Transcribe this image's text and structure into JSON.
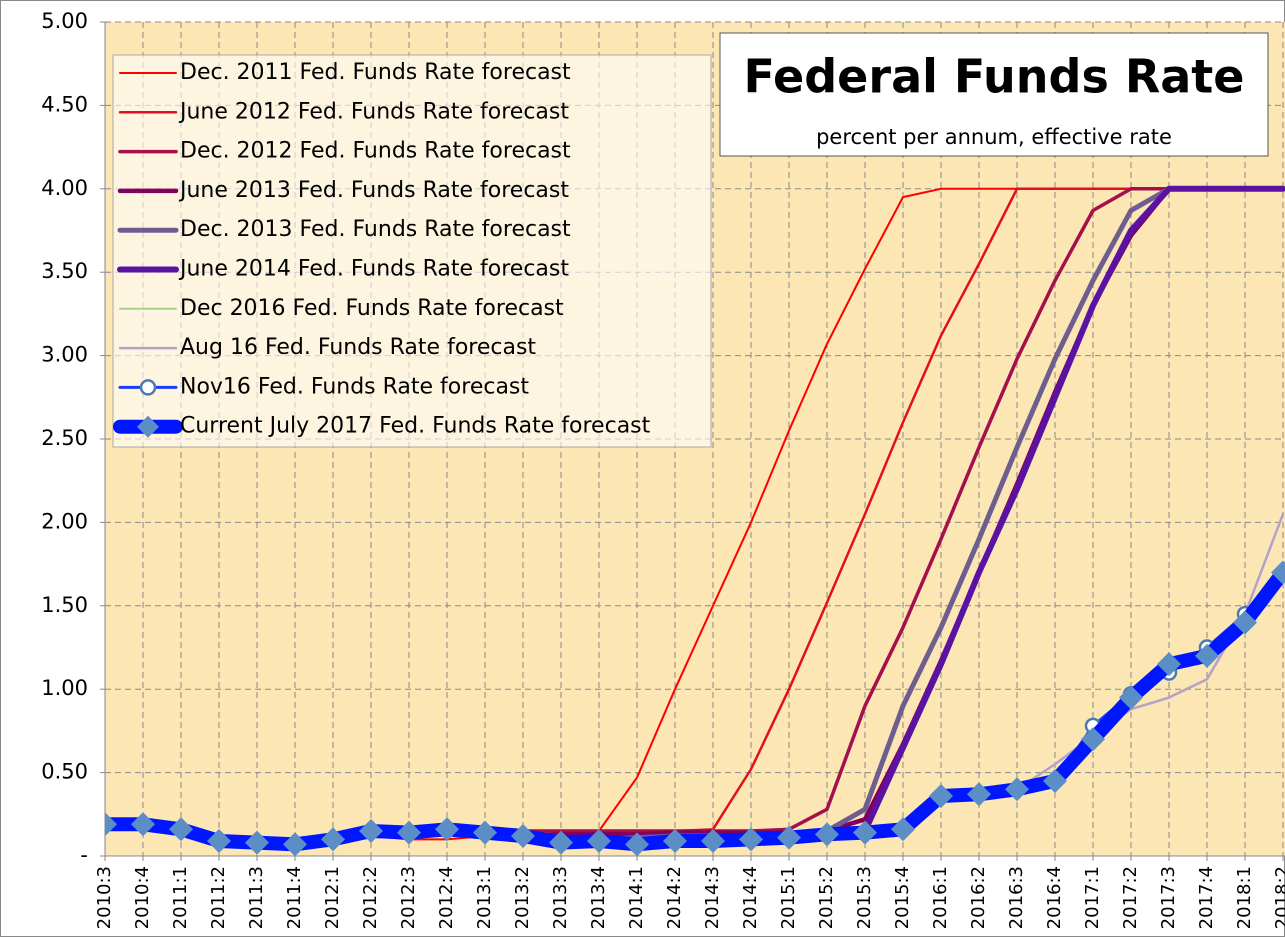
{
  "chart_data": {
    "type": "line",
    "title": "Federal Funds Rate",
    "subtitle": "percent per annum, effective rate",
    "background": "#fce6b4",
    "grid": true,
    "legend": "upper left",
    "categories": [
      "2010:3",
      "2010:4",
      "2011:1",
      "2011:2",
      "2011:3",
      "2011:4",
      "2012:1",
      "2012:2",
      "2012:3",
      "2012:4",
      "2013:1",
      "2013:2",
      "2013:3",
      "2013:4",
      "2014:1",
      "2014:2",
      "2014:3",
      "2014:4",
      "2015:1",
      "2015:2",
      "2015:3",
      "2015:4",
      "2016:1",
      "2016:2",
      "2016:3",
      "2016:4",
      "2017:1",
      "2017:2",
      "2017:3",
      "2017:4",
      "2018:1",
      "2018:2"
    ],
    "ylim": [
      0,
      5
    ],
    "yticks": [
      {
        "value": 0,
        "label": "-"
      },
      {
        "value": 0.5,
        "label": "0.50"
      },
      {
        "value": 1,
        "label": "1.00"
      },
      {
        "value": 1.5,
        "label": "1.50"
      },
      {
        "value": 2,
        "label": "2.00"
      },
      {
        "value": 2.5,
        "label": "2.50"
      },
      {
        "value": 3,
        "label": "3.00"
      },
      {
        "value": 3.5,
        "label": "3.50"
      },
      {
        "value": 4,
        "label": "4.00"
      },
      {
        "value": 4.5,
        "label": "4.50"
      },
      {
        "value": 5,
        "label": "5.00"
      }
    ],
    "series": [
      {
        "name": "Dec. 2011 Fed. Funds Rate forecast",
        "color": "#ff0000",
        "line_width": 2,
        "values": [
          null,
          null,
          null,
          null,
          null,
          0.08,
          0.1,
          0.12,
          0.1,
          0.1,
          0.12,
          0.14,
          0.15,
          0.15,
          0.47,
          1.0,
          1.5,
          2.0,
          2.55,
          3.07,
          3.52,
          3.95,
          4.0,
          4.0,
          4.0,
          4.0,
          4.0,
          4.0,
          4.0,
          4.0,
          4.0,
          4.0
        ]
      },
      {
        "name": "June 2012 Fed. Funds Rate forecast",
        "color": "#e2101e",
        "line_width": 2.5,
        "values": [
          null,
          null,
          null,
          null,
          null,
          null,
          null,
          0.15,
          0.15,
          0.15,
          0.15,
          0.15,
          0.15,
          0.15,
          0.15,
          0.15,
          0.16,
          0.52,
          1.0,
          1.52,
          2.05,
          2.6,
          3.12,
          3.55,
          4.0,
          4.0,
          4.0,
          4.0,
          4.0,
          4.0,
          4.0,
          4.0
        ]
      },
      {
        "name": "Dec. 2012 Fed. Funds Rate forecast",
        "color": "#a3104c",
        "line_width": 3.5,
        "values": [
          null,
          null,
          null,
          null,
          null,
          null,
          null,
          null,
          null,
          0.16,
          0.15,
          0.15,
          0.15,
          0.15,
          0.15,
          0.15,
          0.15,
          0.15,
          0.16,
          0.28,
          0.9,
          1.37,
          1.9,
          2.45,
          2.98,
          3.45,
          3.87,
          4.0,
          4.0,
          4.0,
          4.0,
          4.0
        ]
      },
      {
        "name": "June 2013 Fed. Funds Rate forecast",
        "color": "#82005e",
        "line_width": 4.5,
        "values": [
          null,
          null,
          null,
          null,
          null,
          null,
          null,
          null,
          null,
          null,
          null,
          0.12,
          0.13,
          0.13,
          0.13,
          0.14,
          0.14,
          0.14,
          0.14,
          0.15,
          0.22,
          0.67,
          1.17,
          1.7,
          2.23,
          2.78,
          3.3,
          3.72,
          4.0,
          4.0,
          4.0,
          4.0
        ]
      },
      {
        "name": "Dec. 2013 Fed. Funds Rate forecast",
        "color": "#6e5e8f",
        "line_width": 5,
        "values": [
          null,
          null,
          null,
          null,
          null,
          null,
          null,
          null,
          null,
          null,
          null,
          null,
          null,
          0.1,
          0.11,
          0.12,
          0.12,
          0.12,
          0.13,
          0.15,
          0.28,
          0.9,
          1.37,
          1.9,
          2.45,
          2.98,
          3.45,
          3.87,
          4.0,
          4.0,
          4.0,
          4.0
        ]
      },
      {
        "name": "June 2014 Fed. Funds Rate forecast",
        "color": "#5a12a2",
        "line_width": 6,
        "values": [
          null,
          null,
          null,
          null,
          null,
          null,
          null,
          null,
          null,
          null,
          null,
          null,
          null,
          null,
          null,
          0.09,
          0.1,
          0.11,
          0.12,
          0.13,
          0.15,
          0.65,
          1.15,
          1.7,
          2.2,
          2.75,
          3.3,
          3.75,
          4.0,
          4.0,
          4.0,
          4.0
        ]
      },
      {
        "name": "Dec 2016 Fed. Funds Rate forecast",
        "color": "#a9d18e",
        "line_width": 2,
        "values": [
          null,
          null,
          null,
          null,
          null,
          null,
          null,
          null,
          null,
          null,
          null,
          null,
          null,
          null,
          null,
          null,
          null,
          null,
          null,
          null,
          null,
          null,
          null,
          null,
          null,
          0.45,
          0.68,
          0.95,
          1.12,
          1.19,
          1.4,
          1.65
        ]
      },
      {
        "name": "Aug 16 Fed. Funds Rate forecast",
        "color": "#b3a2c9",
        "line_width": 2.5,
        "values": [
          null,
          null,
          null,
          null,
          null,
          null,
          null,
          null,
          null,
          null,
          null,
          null,
          null,
          null,
          null,
          null,
          null,
          null,
          null,
          null,
          null,
          null,
          null,
          null,
          0.4,
          0.55,
          0.72,
          0.88,
          0.95,
          1.06,
          1.45,
          2.05
        ]
      },
      {
        "name": "Nov16 Fed. Funds Rate forecast",
        "color": "#1a3cff",
        "line_width": 3,
        "marker": "circle",
        "marker_color": "#4a7bb0",
        "values": [
          null,
          null,
          null,
          null,
          null,
          null,
          null,
          null,
          null,
          null,
          null,
          null,
          null,
          null,
          null,
          null,
          null,
          null,
          null,
          null,
          null,
          null,
          null,
          null,
          null,
          0.45,
          0.78,
          0.97,
          1.1,
          1.25,
          1.45,
          1.7
        ]
      },
      {
        "name": "Current July 2017 Fed. Funds Rate forecast",
        "color": "#0016ff",
        "line_width": 14,
        "marker": "diamond",
        "marker_color": "#5b8ec7",
        "values": [
          0.19,
          0.19,
          0.16,
          0.09,
          0.08,
          0.07,
          0.1,
          0.15,
          0.14,
          0.16,
          0.14,
          0.12,
          0.08,
          0.09,
          0.07,
          0.09,
          0.09,
          0.1,
          0.11,
          0.13,
          0.14,
          0.16,
          0.36,
          0.37,
          0.4,
          0.45,
          0.7,
          0.95,
          1.15,
          1.2,
          1.4,
          1.7
        ]
      }
    ]
  }
}
